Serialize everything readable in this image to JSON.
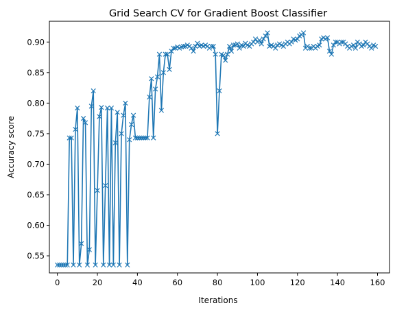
{
  "chart_data": {
    "type": "line",
    "title": "Grid Search CV for Gradient Boost Classifier",
    "xlabel": "Iterations",
    "ylabel": "Accuracy score",
    "xlim": [
      -4,
      166
    ],
    "ylim": [
      0.522,
      0.934
    ],
    "xticks": [
      0,
      20,
      40,
      60,
      80,
      100,
      120,
      140,
      160
    ],
    "yticks": [
      0.55,
      0.6,
      0.65,
      0.7,
      0.75,
      0.8,
      0.85,
      0.9
    ],
    "ytick_labels": [
      "0.55",
      "0.60",
      "0.65",
      "0.70",
      "0.75",
      "0.80",
      "0.85",
      "0.90"
    ],
    "grid": false,
    "marker": "x",
    "series": [
      {
        "color": "#1f77b4",
        "values": [
          0.535,
          0.535,
          0.535,
          0.535,
          0.535,
          0.535,
          0.743,
          0.743,
          0.535,
          0.757,
          0.792,
          0.535,
          0.57,
          0.775,
          0.768,
          0.535,
          0.56,
          0.795,
          0.82,
          0.535,
          0.657,
          0.778,
          0.793,
          0.535,
          0.665,
          0.792,
          0.535,
          0.792,
          0.535,
          0.735,
          0.785,
          0.535,
          0.75,
          0.78,
          0.8,
          0.535,
          0.74,
          0.765,
          0.78,
          0.743,
          0.743,
          0.743,
          0.743,
          0.743,
          0.743,
          0.743,
          0.81,
          0.84,
          0.743,
          0.823,
          0.843,
          0.88,
          0.788,
          0.85,
          0.88,
          0.88,
          0.855,
          0.885,
          0.89,
          0.89,
          0.892,
          0.89,
          0.892,
          0.893,
          0.893,
          0.895,
          0.893,
          0.89,
          0.885,
          0.893,
          0.898,
          0.893,
          0.895,
          0.893,
          0.895,
          0.893,
          0.89,
          0.893,
          0.893,
          0.88,
          0.75,
          0.82,
          0.88,
          0.878,
          0.87,
          0.88,
          0.893,
          0.885,
          0.895,
          0.895,
          0.897,
          0.89,
          0.895,
          0.893,
          0.898,
          0.895,
          0.893,
          0.897,
          0.9,
          0.905,
          0.9,
          0.903,
          0.897,
          0.905,
          0.91,
          0.915,
          0.893,
          0.895,
          0.893,
          0.89,
          0.895,
          0.897,
          0.895,
          0.893,
          0.897,
          0.9,
          0.897,
          0.9,
          0.905,
          0.903,
          0.905,
          0.91,
          0.912,
          0.915,
          0.89,
          0.893,
          0.89,
          0.89,
          0.893,
          0.89,
          0.893,
          0.895,
          0.905,
          0.907,
          0.905,
          0.907,
          0.885,
          0.88,
          0.895,
          0.9,
          0.9,
          0.897,
          0.9,
          0.9,
          0.897,
          0.893,
          0.89,
          0.893,
          0.895,
          0.89,
          0.9,
          0.897,
          0.893,
          0.895,
          0.9,
          0.897,
          0.893,
          0.89,
          0.895,
          0.893
        ]
      }
    ]
  }
}
